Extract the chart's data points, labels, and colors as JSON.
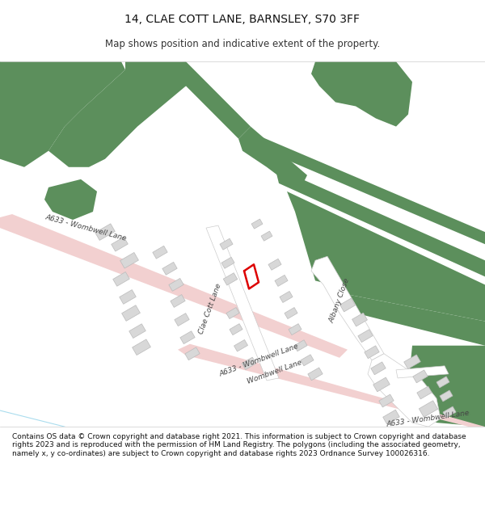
{
  "title": "14, CLAE COTT LANE, BARNSLEY, S70 3FF",
  "subtitle": "Map shows position and indicative extent of the property.",
  "footer": "Contains OS data © Crown copyright and database right 2021. This information is subject to Crown copyright and database rights 2023 and is reproduced with the permission of HM Land Registry. The polygons (including the associated geometry, namely x, y co-ordinates) are subject to Crown copyright and database rights 2023 Ordnance Survey 100026316.",
  "green_color": "#5c8f5c",
  "road_color": "#f2d0d0",
  "building_color": "#d8d8d8",
  "building_outline": "#bbbbbb",
  "road_line_color": "#cccccc",
  "plot_color": "#dd0000",
  "label_color": "#444444",
  "map_bg": "#ffffff",
  "title_fontsize": 10,
  "subtitle_fontsize": 8.5,
  "footer_fontsize": 6.5
}
